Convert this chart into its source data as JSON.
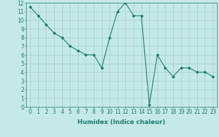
{
  "x": [
    0,
    1,
    2,
    3,
    4,
    5,
    6,
    7,
    8,
    9,
    10,
    11,
    12,
    13,
    14,
    15,
    16,
    17,
    18,
    19,
    20,
    21,
    22,
    23
  ],
  "y": [
    11.5,
    10.5,
    9.5,
    8.5,
    8.0,
    7.0,
    6.5,
    6.0,
    6.0,
    4.5,
    8.0,
    11.0,
    12.0,
    10.5,
    10.5,
    0.2,
    6.0,
    4.5,
    3.5,
    4.5,
    4.5,
    4.0,
    4.0,
    3.5
  ],
  "line_color": "#1a7a6e",
  "marker": "D",
  "marker_size": 2,
  "bg_color": "#c5e8e8",
  "grid_color": "#9dcece",
  "xlabel": "Humidex (Indice chaleur)",
  "xlim": [
    -0.5,
    23.5
  ],
  "ylim": [
    0,
    12
  ],
  "xticks": [
    0,
    1,
    2,
    3,
    4,
    5,
    6,
    7,
    8,
    9,
    10,
    11,
    12,
    13,
    14,
    15,
    16,
    17,
    18,
    19,
    20,
    21,
    22,
    23
  ],
  "yticks": [
    0,
    1,
    2,
    3,
    4,
    5,
    6,
    7,
    8,
    9,
    10,
    11,
    12
  ],
  "xlabel_fontsize": 6.5,
  "tick_fontsize": 5.5,
  "linewidth": 0.8
}
